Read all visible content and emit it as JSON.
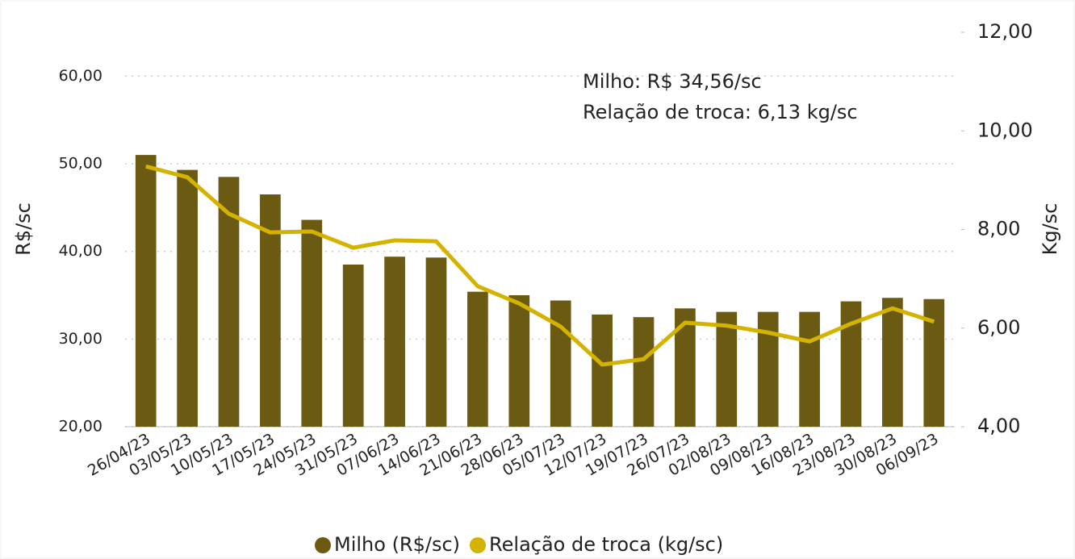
{
  "chart_data": {
    "type": "bar-line",
    "categories": [
      "26/04/23",
      "03/05/23",
      "10/05/23",
      "17/05/23",
      "24/05/23",
      "31/05/23",
      "07/06/23",
      "14/06/23",
      "21/06/23",
      "28/06/23",
      "05/07/23",
      "12/07/23",
      "19/07/23",
      "26/07/23",
      "02/08/23",
      "09/08/23",
      "16/08/23",
      "23/08/23",
      "30/08/23",
      "06/09/23"
    ],
    "series": [
      {
        "name": "Milho (R$/sc)",
        "color": "#6b5a12",
        "kind": "bar",
        "values": [
          51.0,
          49.3,
          48.5,
          46.5,
          43.6,
          38.5,
          39.4,
          39.3,
          35.4,
          35.0,
          34.4,
          32.8,
          32.5,
          33.5,
          33.1,
          33.1,
          33.1,
          34.3,
          34.7,
          34.56
        ]
      },
      {
        "name": "Relação de troca (kg/sc)",
        "color": "#d4b300",
        "kind": "line",
        "axis": "y2",
        "values": [
          9.28,
          9.06,
          8.32,
          7.94,
          7.96,
          7.63,
          7.78,
          7.76,
          6.85,
          6.5,
          6.03,
          5.26,
          5.37,
          6.11,
          6.05,
          5.91,
          5.73,
          6.09,
          6.4,
          6.13
        ]
      }
    ],
    "ylabel": "R$/sc",
    "y2label": "Kg/sc",
    "ylim": [
      20,
      65
    ],
    "yticks": [
      {
        "value": 20,
        "label": "20,00"
      },
      {
        "value": 30,
        "label": "30,00"
      },
      {
        "value": 40,
        "label": "40,00"
      },
      {
        "value": 50,
        "label": "50,00"
      },
      {
        "value": 60,
        "label": "60,00"
      }
    ],
    "y2lim": [
      4,
      12
    ],
    "y2ticks": [
      {
        "value": 4,
        "label": "4,00"
      },
      {
        "value": 6,
        "label": "6,00"
      },
      {
        "value": 8,
        "label": "8,00"
      },
      {
        "value": 10,
        "label": "10,00"
      },
      {
        "value": 12,
        "label": "12,00"
      }
    ],
    "annotations": [
      "Milho: R$ 34,56/sc",
      "Relação de troca: 6,13 kg/sc"
    ],
    "grid": true,
    "legend": "bottom"
  }
}
